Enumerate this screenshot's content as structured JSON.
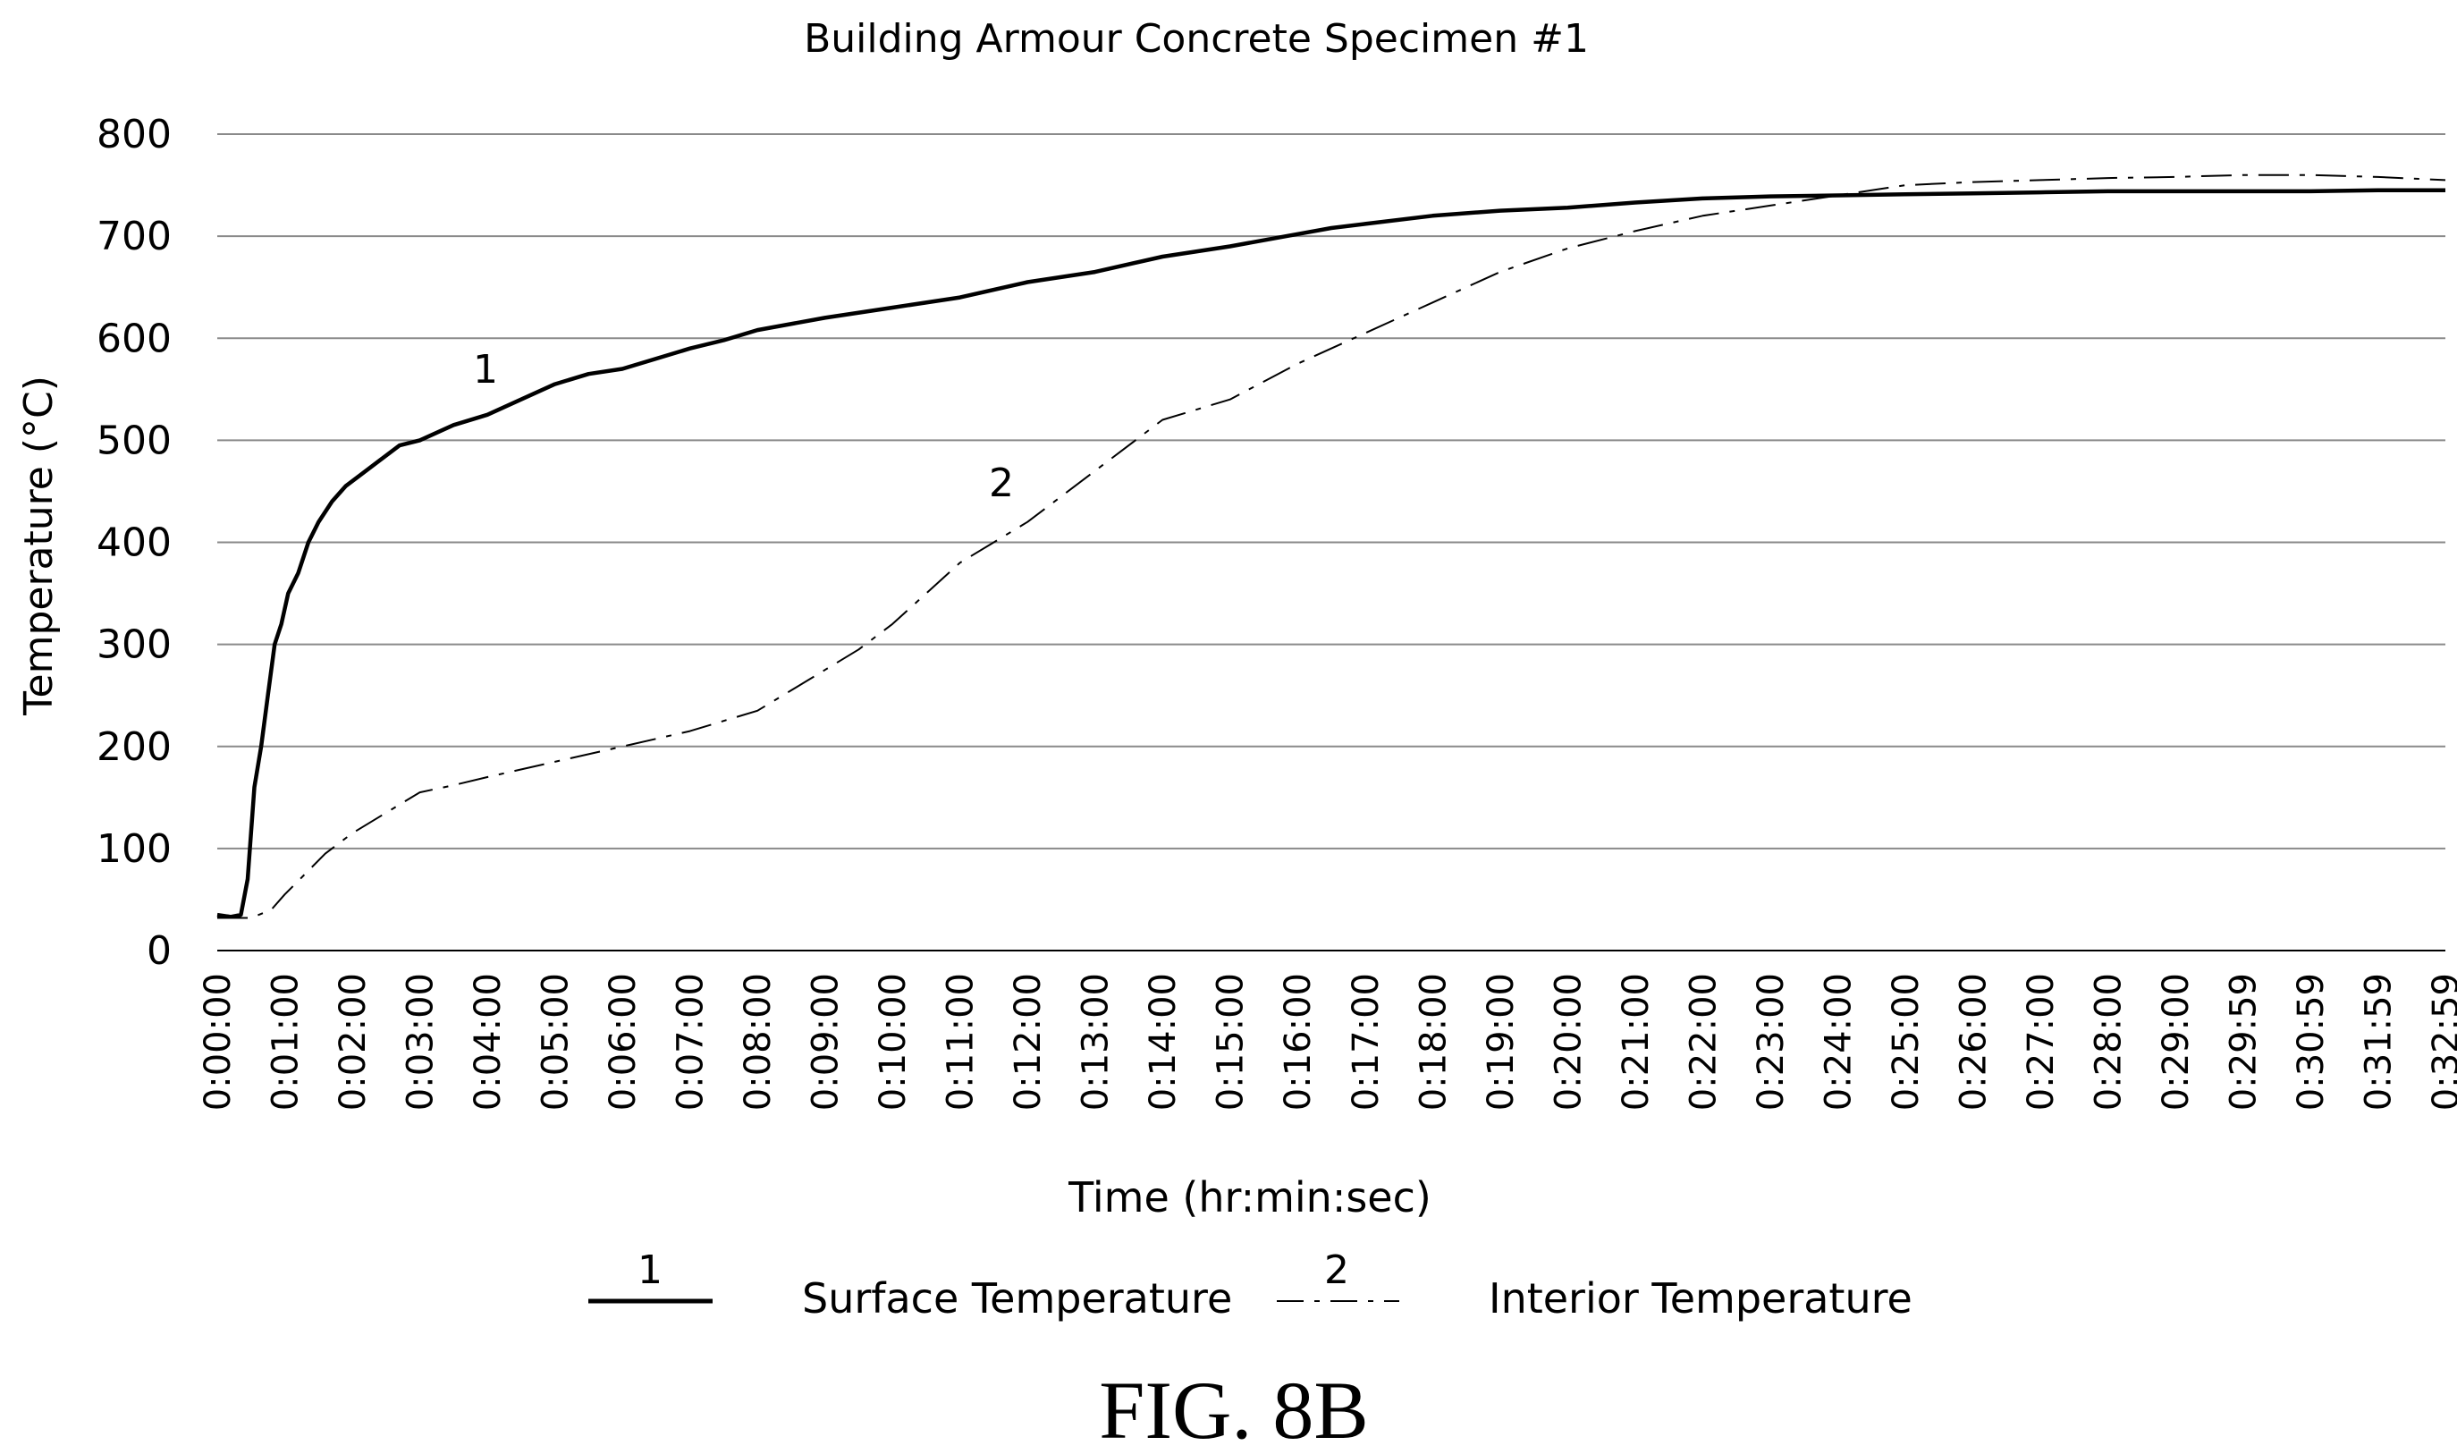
{
  "chart_data": {
    "type": "line",
    "title": "Building Armour Concrete Specimen #1",
    "xlabel": "Time (hr:min:sec)",
    "ylabel": "Temperature (°C)",
    "ylim": [
      0,
      800
    ],
    "yticks": [
      "0",
      "100",
      "200",
      "300",
      "400",
      "500",
      "600",
      "700",
      "800"
    ],
    "xtick_labels": [
      "0:00:00",
      "0:01:00",
      "0:02:00",
      "0:03:00",
      "0:04:00",
      "0:05:00",
      "0:06:00",
      "0:07:00",
      "0:08:00",
      "0:09:00",
      "0:10:00",
      "0:11:00",
      "0:12:00",
      "0:13:00",
      "0:14:00",
      "0:15:00",
      "0:16:00",
      "0:17:00",
      "0:18:00",
      "0:19:00",
      "0:20:00",
      "0:21:00",
      "0:22:00",
      "0:23:00",
      "0:24:00",
      "0:25:00",
      "0:26:00",
      "0:27:00",
      "0:28:00",
      "0:29:00",
      "0:29:59",
      "0:30:59",
      "0:31:59",
      "0:32:59"
    ],
    "grid": "horizontal",
    "legend_position": "bottom",
    "x_unit": "minutes",
    "series": [
      {
        "name": "Surface Temperature",
        "label": "1",
        "style": "solid",
        "x": [
          0.0,
          0.2,
          0.35,
          0.45,
          0.55,
          0.65,
          0.75,
          0.85,
          0.95,
          1.05,
          1.2,
          1.35,
          1.5,
          1.7,
          1.9,
          2.1,
          2.4,
          2.7,
          3.0,
          3.5,
          4.0,
          4.5,
          5.0,
          5.5,
          6.0,
          6.5,
          7.0,
          7.5,
          8.0,
          9.0,
          10.0,
          11.0,
          12.0,
          13.0,
          14.0,
          15.0,
          16.0,
          16.5,
          17.0,
          18.0,
          19.0,
          20.0,
          21.0,
          22.0,
          23.0,
          24.0,
          25.0,
          26.0,
          27.0,
          28.0,
          29.0,
          30.0,
          31.0,
          32.0,
          33.0
        ],
        "y": [
          35,
          33,
          35,
          70,
          160,
          200,
          250,
          300,
          320,
          350,
          370,
          400,
          420,
          440,
          455,
          465,
          480,
          495,
          500,
          515,
          525,
          540,
          555,
          565,
          570,
          580,
          590,
          598,
          608,
          620,
          630,
          640,
          655,
          665,
          680,
          690,
          702,
          708,
          712,
          720,
          725,
          728,
          733,
          737,
          739,
          740,
          741,
          742,
          743,
          744,
          744,
          744,
          744,
          745,
          745
        ]
      },
      {
        "name": "Interior Temperature",
        "label": "2",
        "style": "dash-dot",
        "x": [
          0.0,
          0.2,
          0.5,
          0.8,
          1.0,
          1.3,
          1.6,
          2.0,
          2.5,
          3.0,
          3.5,
          4.0,
          5.0,
          6.0,
          7.0,
          8.0,
          8.5,
          9.0,
          9.5,
          10.0,
          10.5,
          11.0,
          12.0,
          13.0,
          14.0,
          15.0,
          16.0,
          17.0,
          18.0,
          19.0,
          20.0,
          21.0,
          22.0,
          23.0,
          24.0,
          25.0,
          26.0,
          27.0,
          28.0,
          29.0,
          30.0,
          31.0,
          32.0,
          33.0
        ],
        "y": [
          32,
          32,
          32,
          40,
          55,
          75,
          95,
          115,
          135,
          155,
          162,
          170,
          185,
          200,
          215,
          235,
          255,
          275,
          295,
          320,
          350,
          380,
          420,
          470,
          520,
          540,
          575,
          605,
          635,
          665,
          688,
          705,
          720,
          730,
          740,
          750,
          753,
          755,
          757,
          758,
          760,
          760,
          758,
          755
        ]
      }
    ]
  },
  "legend": {
    "items": [
      {
        "marker": "1",
        "label": "Surface Temperature"
      },
      {
        "marker": "2",
        "label": "Interior Temperature"
      }
    ]
  },
  "annotations": {
    "curve1": "1",
    "curve2": "2"
  },
  "figure_label": "FIG. 8B"
}
